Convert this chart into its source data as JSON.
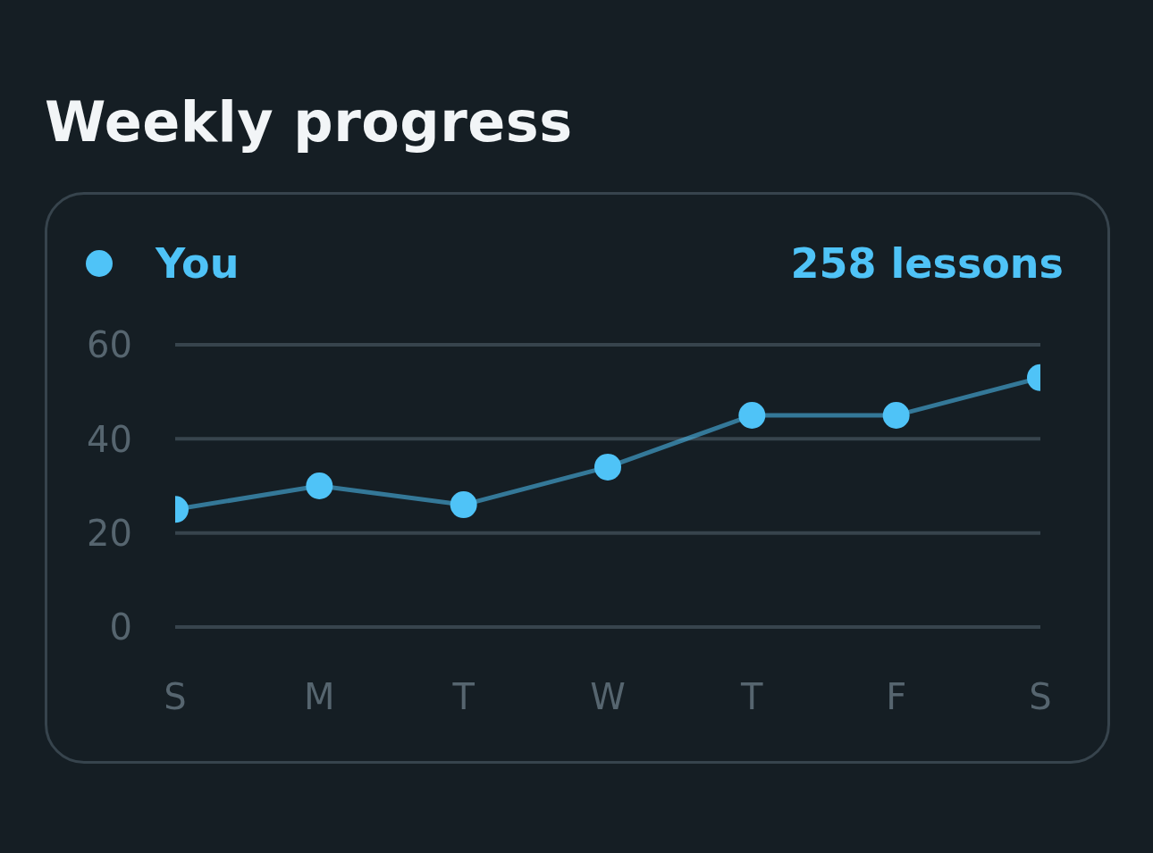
{
  "chart_data": {
    "type": "line",
    "title": "Weekly progress",
    "categories": [
      "S",
      "M",
      "T",
      "W",
      "T",
      "F",
      "S"
    ],
    "series": [
      {
        "name": "You",
        "color": "#4fc3f7",
        "values": [
          25,
          30,
          26,
          34,
          45,
          45,
          53
        ]
      }
    ],
    "ylim": [
      0,
      60
    ],
    "yticks": [
      0,
      20,
      40,
      60
    ],
    "grid": "y",
    "legend": "top left",
    "marker": "circle",
    "line_style": "solid",
    "annotations": [
      "258 lessons"
    ]
  }
}
